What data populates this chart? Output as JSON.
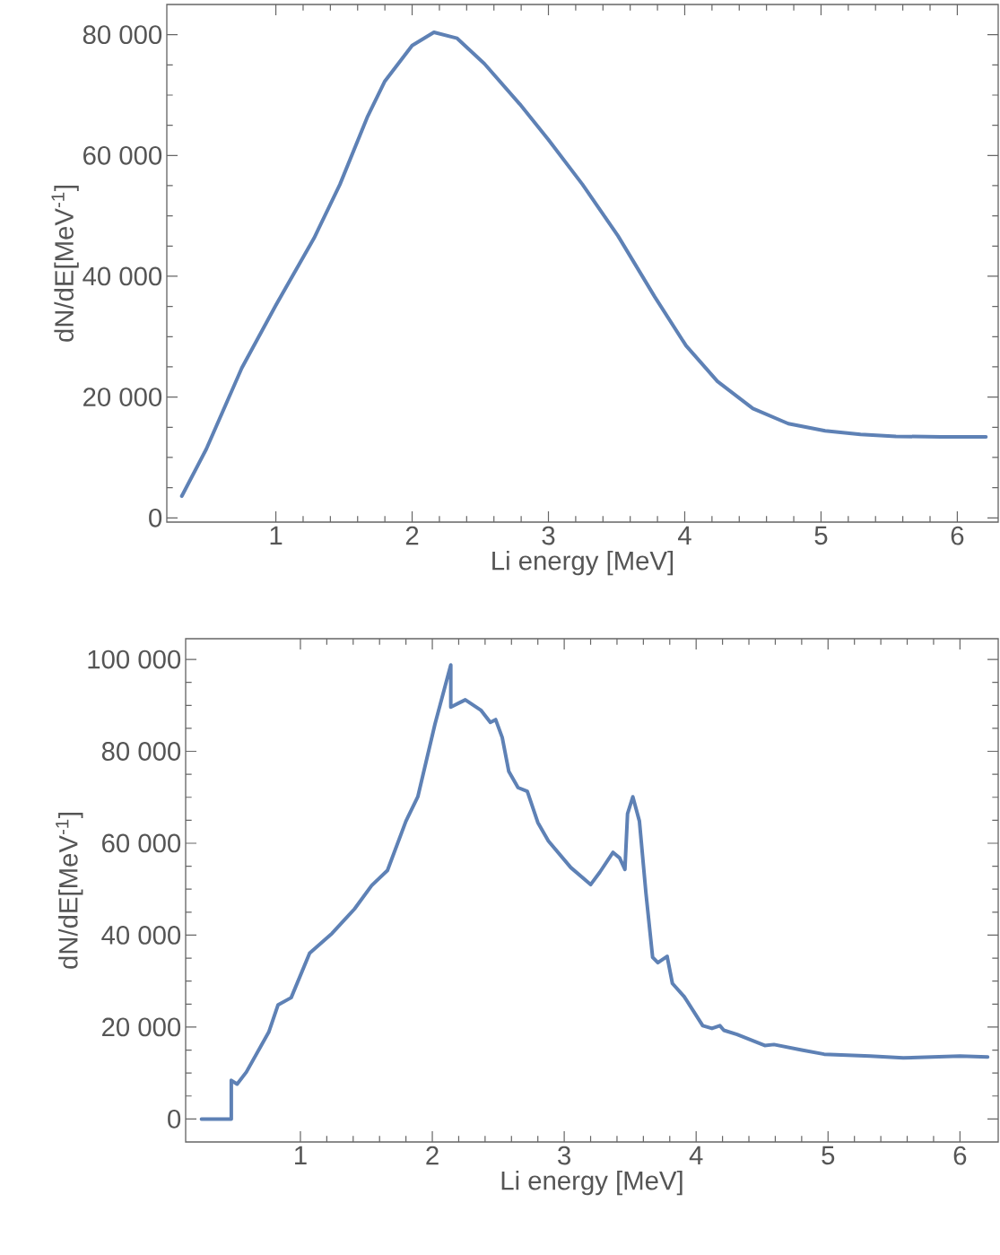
{
  "chart_data": [
    {
      "type": "line",
      "xlabel": "Li energy [MeV]",
      "ylabel": "dN/dE[MeV$^{-1}$]",
      "xlim": [
        0.2,
        6.3
      ],
      "ylim": [
        -700,
        85000
      ],
      "xticks": [
        1,
        2,
        3,
        4,
        5,
        6
      ],
      "yticks": [
        0,
        {
          "value": 20000,
          "label": "20 000"
        },
        {
          "value": 40000,
          "label": "40 000"
        },
        {
          "value": 60000,
          "label": "60 000"
        },
        {
          "value": 80000,
          "label": "80 000"
        }
      ],
      "x": [
        0.31,
        0.49,
        0.75,
        1.0,
        1.28,
        1.47,
        1.67,
        1.8,
        2.0,
        2.16,
        2.33,
        2.53,
        2.79,
        3.0,
        3.25,
        3.51,
        3.78,
        4.01,
        4.24,
        4.5,
        4.76,
        5.03,
        5.29,
        5.55,
        5.88,
        6.21
      ],
      "series": [
        {
          "color": "#5e81b5",
          "values": [
            3600,
            11400,
            24800,
            35200,
            46300,
            55200,
            66300,
            72300,
            78200,
            80400,
            79400,
            75200,
            68500,
            62600,
            55200,
            46700,
            36600,
            28500,
            22600,
            18100,
            15600,
            14400,
            13800,
            13500,
            13400,
            13400
          ]
        }
      ]
    },
    {
      "type": "line",
      "xlabel": "Li energy [MeV]",
      "ylabel": "dN/dE[MeV$^{-1}$]",
      "xlim": [
        0.13,
        6.29
      ],
      "ylim": [
        -5000,
        104500
      ],
      "xticks": [
        1,
        2,
        3,
        4,
        5,
        6
      ],
      "yticks": [
        0,
        {
          "value": 20000,
          "label": "20 000"
        },
        {
          "value": 40000,
          "label": "40 000"
        },
        {
          "value": 60000,
          "label": "60 000"
        },
        {
          "value": 80000,
          "label": "80 000"
        },
        {
          "value": 100000,
          "label": "100 000"
        }
      ],
      "x": [
        0.25,
        0.476,
        0.476,
        0.52,
        0.59,
        0.76,
        0.83,
        0.93,
        1.07,
        1.24,
        1.41,
        1.54,
        1.66,
        1.8,
        1.89,
        2.02,
        2.14,
        2.14,
        2.25,
        2.37,
        2.44,
        2.48,
        2.53,
        2.58,
        2.65,
        2.72,
        2.8,
        2.88,
        2.9,
        3.05,
        3.2,
        3.27,
        3.37,
        3.42,
        3.46,
        3.48,
        3.52,
        3.57,
        3.62,
        3.67,
        3.71,
        3.78,
        3.82,
        3.91,
        4.05,
        4.12,
        4.18,
        4.21,
        4.31,
        4.52,
        4.59,
        4.8,
        4.97,
        5.32,
        5.57,
        6.0,
        6.21
      ],
      "series": [
        {
          "color": "#5e81b5",
          "values": [
            0,
            0,
            8400,
            7600,
            10200,
            18900,
            24800,
            26400,
            36100,
            40400,
            45700,
            50800,
            54100,
            64800,
            70100,
            85900,
            98800,
            89600,
            91200,
            88900,
            86300,
            86900,
            83000,
            75600,
            72100,
            71300,
            64500,
            60500,
            59800,
            54700,
            51000,
            53700,
            58000,
            56800,
            54300,
            66400,
            70100,
            64800,
            49000,
            35200,
            34000,
            35400,
            29500,
            26600,
            20300,
            19700,
            20300,
            19300,
            18400,
            16000,
            16200,
            15000,
            14100,
            13700,
            13300,
            13700,
            13500
          ]
        }
      ]
    }
  ]
}
